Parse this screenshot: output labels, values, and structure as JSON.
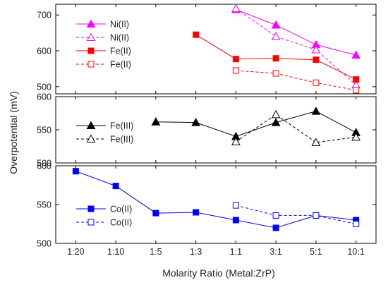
{
  "chart_data": {
    "type": "line",
    "xlabel": "Molarity Ratio (Metal:ZrP)",
    "ylabel": "Overpotential (mV)",
    "categories": [
      "1:20",
      "1:10",
      "1:5",
      "1:3",
      "1:1",
      "3:1",
      "5:1",
      "10:1"
    ],
    "panels": [
      {
        "ylim": [
          480,
          730
        ],
        "yticks": [
          500,
          600,
          700
        ],
        "legend_position": "top-left",
        "series": [
          {
            "name": "Ni(II)",
            "color": "#ff00ff",
            "marker": "triangle",
            "filled": true,
            "dashed": false,
            "values": [
              null,
              null,
              null,
              null,
              715,
              672,
              617,
              588
            ]
          },
          {
            "name": "Ni(II)",
            "color": "#ff00ff",
            "marker": "triangle",
            "filled": false,
            "dashed": true,
            "values": [
              null,
              null,
              null,
              null,
              718,
              640,
              603,
              505
            ]
          },
          {
            "name": "Fe(II)",
            "color": "#ff0000",
            "marker": "square",
            "filled": true,
            "dashed": false,
            "values": [
              null,
              null,
              null,
              645,
              577,
              579,
              575,
              520
            ]
          },
          {
            "name": "Fe(II)",
            "color": "#ff0000",
            "marker": "square",
            "filled": false,
            "dashed": true,
            "values": [
              null,
              null,
              null,
              null,
              545,
              537,
              511,
              490
            ]
          }
        ]
      },
      {
        "ylim": [
          500,
          600
        ],
        "yticks": [
          500,
          550,
          600
        ],
        "legend_position": "left",
        "series": [
          {
            "name": "Fe(III)",
            "color": "#000000",
            "marker": "triangle",
            "filled": true,
            "dashed": false,
            "values": [
              null,
              null,
              562,
              561,
              540,
              561,
              578,
              546
            ]
          },
          {
            "name": "Fe(III)",
            "color": "#000000",
            "marker": "triangle",
            "filled": false,
            "dashed": true,
            "values": [
              null,
              null,
              null,
              null,
              532,
              573,
              531,
              539
            ]
          }
        ]
      },
      {
        "ylim": [
          500,
          600
        ],
        "yticks": [
          500,
          550,
          600
        ],
        "legend_position": "left",
        "series": [
          {
            "name": "Co(II)",
            "color": "#0000ff",
            "marker": "square",
            "filled": true,
            "dashed": false,
            "values": [
              593,
              574,
              539,
              540,
              530,
              520,
              536,
              530
            ]
          },
          {
            "name": "Co(II)",
            "color": "#0000ff",
            "marker": "square",
            "filled": false,
            "dashed": true,
            "values": [
              null,
              null,
              null,
              null,
              549,
              536,
              536,
              525
            ]
          }
        ]
      }
    ]
  }
}
